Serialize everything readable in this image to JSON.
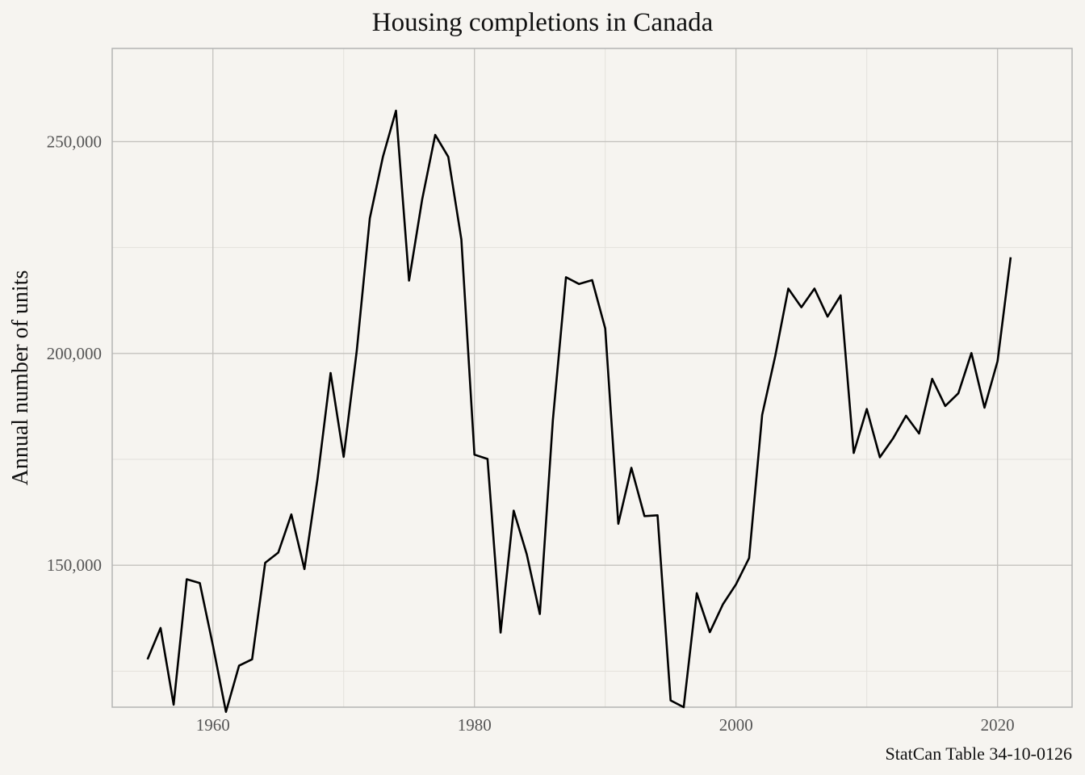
{
  "chart_data": {
    "type": "line",
    "title": "Housing completions in Canada",
    "xlabel": "",
    "ylabel": "Annual number of units",
    "caption": "StatCan Table 34-10-0126",
    "xlim": [
      1952.3,
      2025.7
    ],
    "ylim": [
      116500,
      272000
    ],
    "x_ticks": [
      1960,
      1980,
      2000,
      2020
    ],
    "x_tick_labels": [
      "1960",
      "1980",
      "2000",
      "2020"
    ],
    "y_ticks": [
      150000,
      200000,
      250000
    ],
    "y_tick_labels": [
      "150,000",
      "200,000",
      "250,000"
    ],
    "grid": true,
    "line_color": "#000000",
    "series": [
      {
        "x": [
          1955,
          1956,
          1957,
          1958,
          1959,
          1960,
          1961,
          1962,
          1963,
          1964,
          1965,
          1966,
          1967,
          1968,
          1969,
          1970,
          1971,
          1972,
          1973,
          1974,
          1975,
          1976,
          1977,
          1978,
          1979,
          1980,
          1981,
          1982,
          1983,
          1984,
          1985,
          1986,
          1987,
          1988,
          1989,
          1990,
          1991,
          1992,
          1993,
          1994,
          1995,
          1996,
          1997,
          1998,
          1999,
          2000,
          2001,
          2002,
          2003,
          2004,
          2005,
          2006,
          2007,
          2008,
          2009,
          2010,
          2011,
          2012,
          2013,
          2014,
          2015,
          2016,
          2017,
          2018,
          2019,
          2020,
          2021
        ],
        "y": [
          127800,
          135200,
          117100,
          146700,
          145800,
          131100,
          115400,
          126300,
          127800,
          150600,
          153000,
          162000,
          149100,
          170400,
          195400,
          175600,
          200600,
          231900,
          246400,
          257300,
          217200,
          236300,
          251600,
          246400,
          226900,
          176100,
          175100,
          134100,
          162900,
          152600,
          138500,
          184400,
          218000,
          216400,
          217300,
          205900,
          159800,
          173000,
          161600,
          161800,
          118100,
          116500,
          143400,
          134200,
          140800,
          145500,
          151700,
          185500,
          199400,
          215300,
          210900,
          215300,
          208700,
          213700,
          176500,
          186900,
          175500,
          179900,
          185300,
          181100,
          194000,
          187600,
          190600,
          200100,
          187200,
          198200,
          222700
        ]
      }
    ]
  }
}
